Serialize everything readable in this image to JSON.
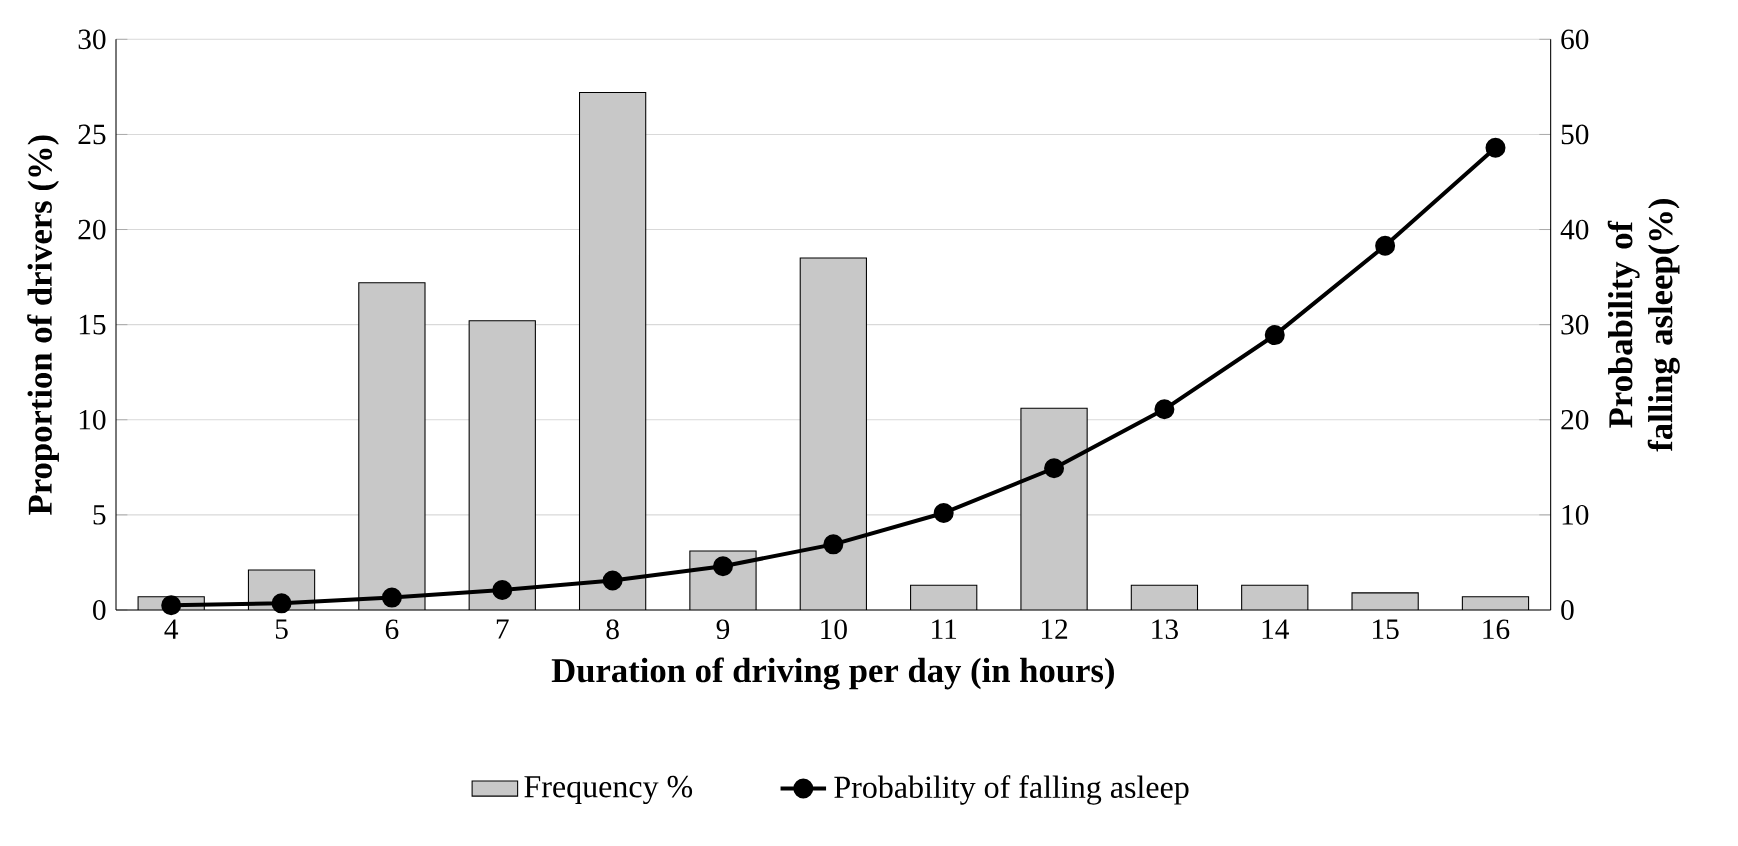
{
  "chart_data": {
    "type": "bar",
    "xlabel": "Duration of driving per day (in hours)",
    "ylabel": "Proportion of drivers (%)",
    "y2label": "Probability of falling asleep(%)",
    "categories": [
      "4",
      "5",
      "6",
      "7",
      "8",
      "9",
      "10",
      "11",
      "12",
      "13",
      "14",
      "15",
      "16"
    ],
    "series": [
      {
        "name": "Frequency %",
        "color": "#c8c8c8",
        "values": [
          0.7,
          2.1,
          17.2,
          15.2,
          27.2,
          3.1,
          18.5,
          1.3,
          10.6,
          1.3,
          1.3,
          0.9,
          0.7
        ]
      },
      {
        "name": "Probability of falling asleep",
        "type": "line",
        "axis": "y2",
        "color": "#000000",
        "marker": "circle",
        "values": [
          0.5,
          0.7,
          1.3,
          2.1,
          3.1,
          4.6,
          6.9,
          10.2,
          14.9,
          21.1,
          28.9,
          38.3,
          48.6
        ]
      }
    ],
    "ylim": [
      0,
      30
    ],
    "yticks": [
      0,
      5,
      10,
      15,
      20,
      25,
      30
    ],
    "y2lim": [
      0,
      60
    ],
    "y2ticks": [
      0,
      10,
      20,
      30,
      40,
      50,
      60
    ],
    "grid": "y",
    "legend": "bottom"
  }
}
